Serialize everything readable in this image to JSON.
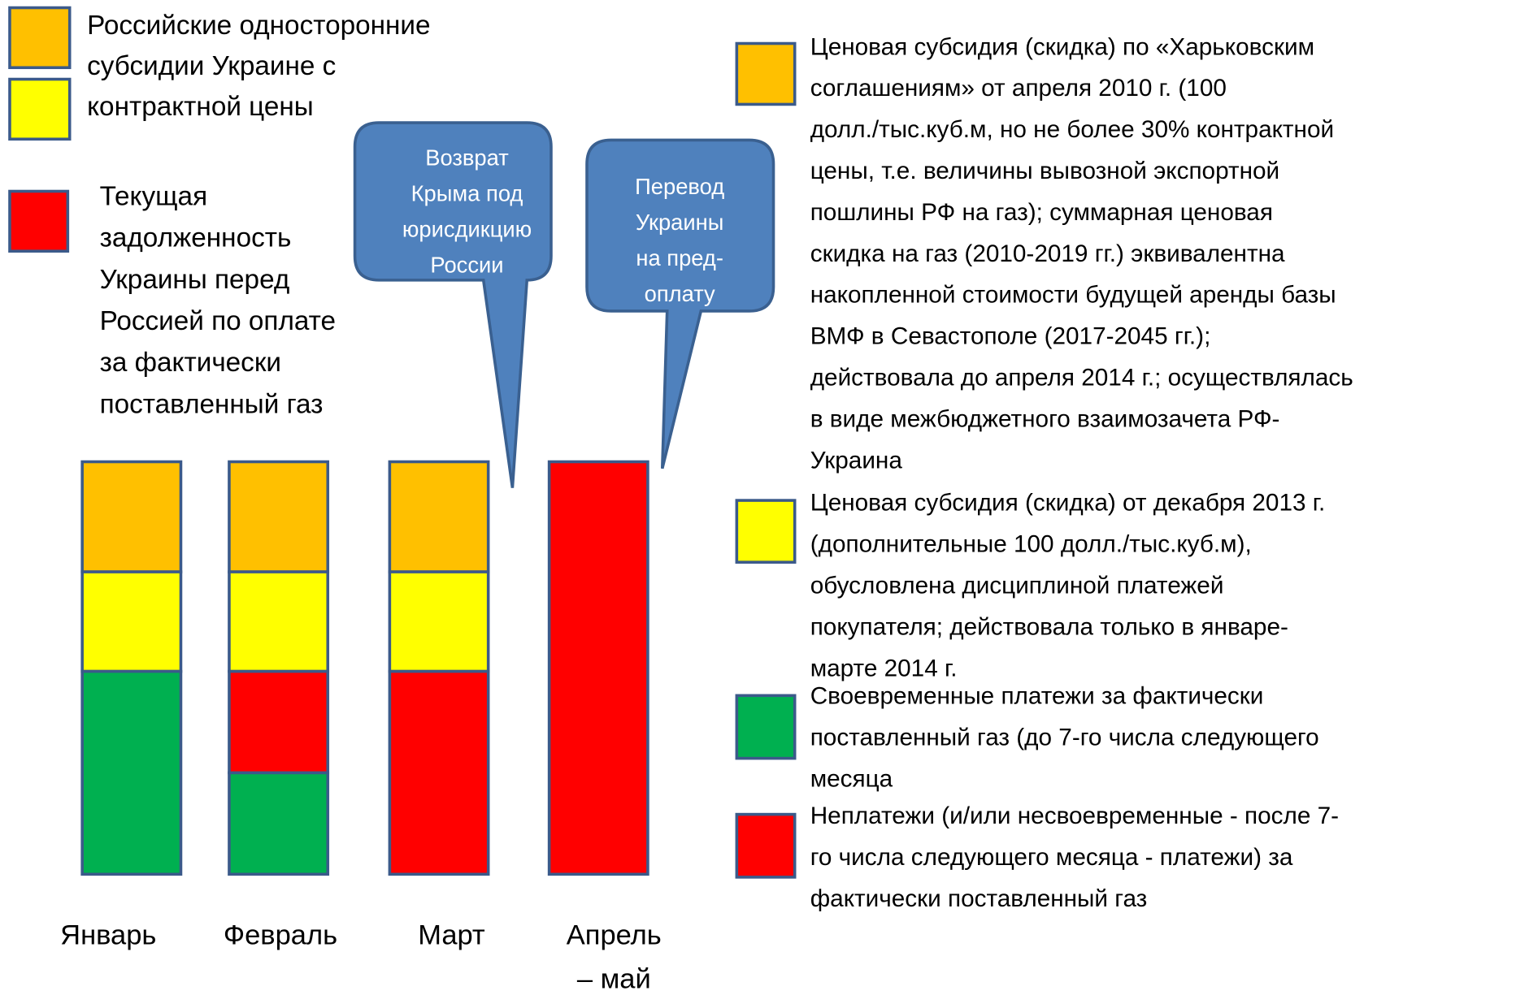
{
  "left_legend": {
    "subsidy": [
      "Российские односторонние",
      "субсидии Украине с",
      "контрактной цены"
    ],
    "debt": [
      "Текущая",
      "задолженность",
      "Украины перед",
      "Россией по оплате",
      "за фактически",
      "поставленный газ"
    ]
  },
  "callouts": [
    [
      "Возврат",
      "Крыма под",
      "юрисдикцию",
      "России"
    ],
    [
      "Перевод",
      "Украины",
      "на пред-",
      "оплату"
    ]
  ],
  "months": [
    [
      "Январь"
    ],
    [
      "Февраль"
    ],
    [
      "Март"
    ],
    [
      "Апрель",
      "– май"
    ]
  ],
  "right_legend": [
    [
      "Ценовая субсидия (скидка) по «Харьковским",
      "соглашениям» от апреля 2010 г. (100",
      "долл./тыс.куб.м, но не более 30%  контрактной",
      "цены, т.е. величины вывозной экспортной",
      "пошлины РФ на газ); суммарная ценовая",
      "скидка на газ (2010-2019 гг.) эквивалентна",
      "накопленной стоимости будущей аренды базы",
      "ВМФ в Севастополе (2017-2045 гг.);",
      "действовала до апреля 2014 г.; осуществлялась",
      "в виде межбюджетного взаимозачета РФ-",
      "Украина"
    ],
    [
      "Ценовая субсидия (скидка) от декабря 2013 г.",
      "(дополнительные 100 долл./тыс.куб.м),",
      "обусловлена дисциплиной платежей",
      "покупателя; действовала только в январе-",
      "марте 2014 г."
    ],
    [
      "Своевременные платежи за фактически",
      "поставленный газ (до 7-го числа следующего",
      "месяца"
    ],
    [
      "Неплатежи (и/или несвоевременные - после 7-",
      "го числа следующего месяца - платежи) за",
      "фактически поставленный газ"
    ]
  ]
}
